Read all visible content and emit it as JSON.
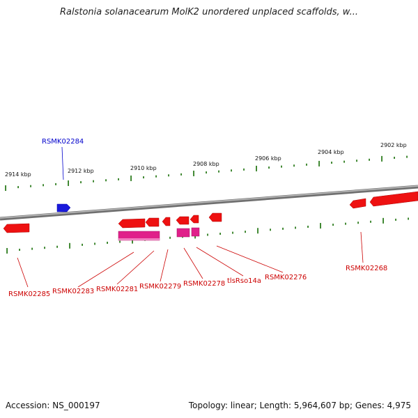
{
  "title": "Ralstonia solanacearum MolK2 unordered unplaced scaffolds, w...",
  "footer": {
    "accession": "Accession: NS_000197",
    "topology": "Topology: linear; Length: 5,964,607 bp; Genes: 4,975"
  },
  "colors": {
    "backbone": "#888888",
    "tick": "#2e7d1f",
    "gene": "#ee1111",
    "rna": "#e0208a",
    "highlight": "#1a1adb",
    "gene_label": "#cc0000",
    "highlight_label": "#0000cc"
  },
  "scale_labels": [
    "2914 kbp",
    "2912 kbp",
    "2910 kbp",
    "2908 kbp",
    "2906 kbp",
    "2904 kbp",
    "2902 kbp"
  ],
  "gene_labels": {
    "g1": "RSMK02284",
    "g2": "RSMK02285",
    "g3": "RSMK02283",
    "g4": "RSMK02281",
    "g5": "RSMK02279",
    "g6": "RSMK02278",
    "g7": "tlsRso14a",
    "g8": "RSMK02276",
    "g9": "RSMK02268"
  }
}
